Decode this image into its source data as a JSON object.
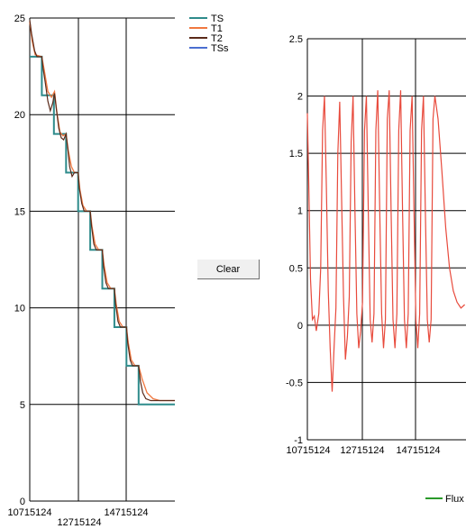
{
  "clear_button": {
    "label": "Clear"
  },
  "chart_data": [
    {
      "type": "line",
      "grid": true,
      "legend_position": "top-right",
      "ylim": [
        0,
        25
      ],
      "y_ticks": [
        "0",
        "5",
        "10",
        "15",
        "20",
        "25"
      ],
      "x_ticks": [
        "10715124",
        "12715124",
        "14715124"
      ],
      "series": [
        {
          "name": "TS",
          "color": "#2e8b8b",
          "points": [
            [
              0,
              23
            ],
            [
              2,
              23
            ],
            [
              2,
              21
            ],
            [
              4,
              21
            ],
            [
              4,
              19
            ],
            [
              6,
              19
            ],
            [
              6,
              17
            ],
            [
              8,
              17
            ],
            [
              8,
              15
            ],
            [
              10,
              15
            ],
            [
              10,
              13
            ],
            [
              12,
              13
            ],
            [
              12,
              11
            ],
            [
              14,
              11
            ],
            [
              14,
              9
            ],
            [
              16,
              9
            ],
            [
              16,
              7
            ],
            [
              18,
              7
            ],
            [
              18,
              5
            ],
            [
              24,
              5
            ]
          ]
        },
        {
          "name": "T1",
          "color": "#f07840",
          "points": [
            [
              0,
              24.8
            ],
            [
              0.4,
              23.8
            ],
            [
              0.9,
              23.1
            ],
            [
              2,
              23
            ],
            [
              2.4,
              22.3
            ],
            [
              3,
              21.2
            ],
            [
              3.6,
              20.9
            ],
            [
              4.1,
              21.2
            ],
            [
              4.5,
              20.1
            ],
            [
              5,
              19.1
            ],
            [
              5.5,
              18.9
            ],
            [
              6,
              19
            ],
            [
              6.4,
              18.1
            ],
            [
              6.9,
              17.3
            ],
            [
              7.4,
              17
            ],
            [
              8,
              17
            ],
            [
              8.3,
              16.1
            ],
            [
              8.8,
              15.3
            ],
            [
              9.4,
              15
            ],
            [
              10,
              15
            ],
            [
              10.3,
              14.2
            ],
            [
              10.8,
              13.3
            ],
            [
              11.4,
              13
            ],
            [
              12,
              13
            ],
            [
              12.3,
              12.2
            ],
            [
              12.8,
              11.3
            ],
            [
              13.4,
              11
            ],
            [
              14,
              11
            ],
            [
              14.3,
              10.2
            ],
            [
              14.8,
              9.3
            ],
            [
              15.4,
              9
            ],
            [
              16,
              9
            ],
            [
              16.3,
              8.2
            ],
            [
              16.8,
              7.3
            ],
            [
              17.4,
              7
            ],
            [
              18,
              7
            ],
            [
              18.6,
              6.3
            ],
            [
              19.4,
              5.6
            ],
            [
              20.4,
              5.3
            ],
            [
              21.5,
              5.2
            ],
            [
              24,
              5.2
            ]
          ]
        },
        {
          "name": "T2",
          "color": "#5a2a1a",
          "points": [
            [
              0,
              24.9
            ],
            [
              0.3,
              24.2
            ],
            [
              0.8,
              23.3
            ],
            [
              1.2,
              23
            ],
            [
              2,
              23
            ],
            [
              2.2,
              22.4
            ],
            [
              2.6,
              21.6
            ],
            [
              3,
              20.7
            ],
            [
              3.4,
              20.2
            ],
            [
              3.8,
              20.6
            ],
            [
              4.1,
              21.1
            ],
            [
              4.4,
              20.3
            ],
            [
              4.8,
              19.3
            ],
            [
              5.2,
              18.8
            ],
            [
              5.6,
              18.7
            ],
            [
              6,
              19
            ],
            [
              6.3,
              18.2
            ],
            [
              6.6,
              17.3
            ],
            [
              7,
              16.8
            ],
            [
              7.4,
              17
            ],
            [
              8,
              17
            ],
            [
              8.2,
              16.2
            ],
            [
              8.6,
              15.4
            ],
            [
              9,
              15
            ],
            [
              10,
              15
            ],
            [
              10.2,
              14.3
            ],
            [
              10.6,
              13.3
            ],
            [
              11,
              13
            ],
            [
              12,
              13
            ],
            [
              12.2,
              12.2
            ],
            [
              12.6,
              11.3
            ],
            [
              13,
              11
            ],
            [
              14,
              11
            ],
            [
              14.2,
              10.2
            ],
            [
              14.6,
              9.3
            ],
            [
              15,
              9
            ],
            [
              16,
              9
            ],
            [
              16.2,
              8.2
            ],
            [
              16.6,
              7.3
            ],
            [
              17,
              7
            ],
            [
              18,
              7
            ],
            [
              18.3,
              6.2
            ],
            [
              18.7,
              5.6
            ],
            [
              19.2,
              5.3
            ],
            [
              20,
              5.2
            ],
            [
              24,
              5.2
            ]
          ]
        },
        {
          "name": "TSs",
          "color": "#4a6fd0",
          "points": []
        }
      ]
    },
    {
      "type": "line",
      "grid": true,
      "legend_position": "bottom-right",
      "ylim": [
        -1,
        2.5
      ],
      "y_ticks": [
        "-1",
        "-0.5",
        "0",
        "0.5",
        "1",
        "1.5",
        "2",
        "2.5"
      ],
      "x_ticks": [
        "10715124",
        "12715124",
        "14715124"
      ],
      "series": [
        {
          "name": "Flux",
          "color": "#2a9a2a",
          "points": []
        },
        {
          "name": "",
          "color": "#e84a3c",
          "points": [
            [
              0,
              1.85
            ],
            [
              0.2,
              1.3
            ],
            [
              0.5,
              0.4
            ],
            [
              0.8,
              0.05
            ],
            [
              1.1,
              0.08
            ],
            [
              1.4,
              -0.05
            ],
            [
              1.8,
              0.1
            ],
            [
              2.1,
              0.5
            ],
            [
              2.4,
              1.7
            ],
            [
              2.7,
              2.0
            ],
            [
              3.0,
              1.2
            ],
            [
              3.3,
              0.3
            ],
            [
              3.6,
              -0.2
            ],
            [
              3.9,
              -0.58
            ],
            [
              4.2,
              -0.2
            ],
            [
              4.5,
              0.15
            ],
            [
              4.8,
              1.5
            ],
            [
              5.1,
              1.95
            ],
            [
              5.4,
              1.1
            ],
            [
              5.7,
              0.25
            ],
            [
              6.0,
              -0.3
            ],
            [
              6.3,
              -0.1
            ],
            [
              6.6,
              0.25
            ],
            [
              6.9,
              1.6
            ],
            [
              7.2,
              2.0
            ],
            [
              7.5,
              1.0
            ],
            [
              7.8,
              0.1
            ],
            [
              8.1,
              -0.2
            ],
            [
              8.4,
              -0.05
            ],
            [
              8.7,
              0.2
            ],
            [
              9.0,
              1.7
            ],
            [
              9.3,
              2.0
            ],
            [
              9.6,
              1.0
            ],
            [
              9.9,
              0.05
            ],
            [
              10.2,
              -0.15
            ],
            [
              10.5,
              0.1
            ],
            [
              10.8,
              1.7
            ],
            [
              11.1,
              2.05
            ],
            [
              11.4,
              1.0
            ],
            [
              11.7,
              0.1
            ],
            [
              12.0,
              -0.2
            ],
            [
              12.3,
              0.05
            ],
            [
              12.6,
              1.8
            ],
            [
              12.9,
              2.05
            ],
            [
              13.2,
              1.0
            ],
            [
              13.5,
              0.05
            ],
            [
              13.8,
              -0.2
            ],
            [
              14.1,
              0.1
            ],
            [
              14.4,
              1.7
            ],
            [
              14.7,
              2.05
            ],
            [
              15.0,
              1.0
            ],
            [
              15.3,
              0.05
            ],
            [
              15.6,
              -0.2
            ],
            [
              15.9,
              0.1
            ],
            [
              16.2,
              1.7
            ],
            [
              16.5,
              2.0
            ],
            [
              16.8,
              1.0
            ],
            [
              17.1,
              0.05
            ],
            [
              17.4,
              -0.2
            ],
            [
              17.7,
              0.1
            ],
            [
              18.0,
              1.7
            ],
            [
              18.3,
              2.0
            ],
            [
              18.6,
              1.0
            ],
            [
              18.9,
              0.05
            ],
            [
              19.2,
              -0.15
            ],
            [
              19.5,
              0.05
            ],
            [
              19.8,
              1.8
            ],
            [
              20.1,
              2.0
            ],
            [
              20.6,
              1.8
            ],
            [
              21.2,
              1.35
            ],
            [
              21.8,
              0.85
            ],
            [
              22.4,
              0.5
            ],
            [
              23.0,
              0.3
            ],
            [
              23.6,
              0.2
            ],
            [
              24.2,
              0.15
            ],
            [
              24.8,
              0.18
            ]
          ]
        }
      ]
    }
  ]
}
